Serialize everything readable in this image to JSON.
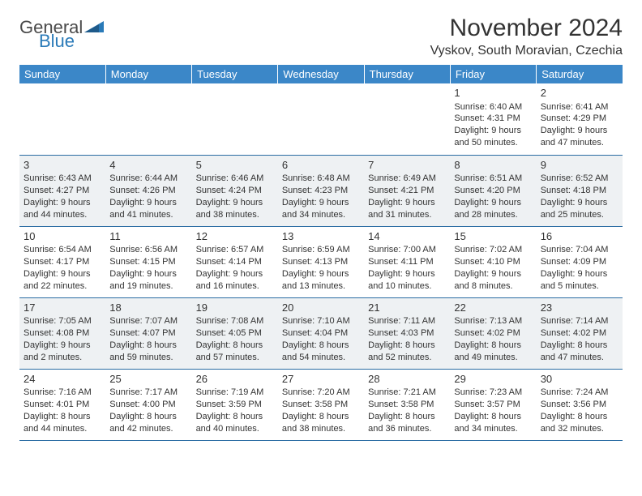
{
  "logo": {
    "text1": "General",
    "text2": "Blue"
  },
  "title": "November 2024",
  "location": "Vyskov, South Moravian, Czechia",
  "colors": {
    "header_bg": "#3b87c8",
    "header_text": "#ffffff",
    "border": "#2a6ca3",
    "shaded_bg": "#eef1f3",
    "text": "#333333",
    "logo_gray": "#4a4a4a",
    "logo_blue": "#2a7ab8"
  },
  "weekdays": [
    "Sunday",
    "Monday",
    "Tuesday",
    "Wednesday",
    "Thursday",
    "Friday",
    "Saturday"
  ],
  "weeks": [
    {
      "shaded": false,
      "days": [
        null,
        null,
        null,
        null,
        null,
        {
          "n": "1",
          "sunrise": "6:40 AM",
          "sunset": "4:31 PM",
          "daylight": "9 hours and 50 minutes."
        },
        {
          "n": "2",
          "sunrise": "6:41 AM",
          "sunset": "4:29 PM",
          "daylight": "9 hours and 47 minutes."
        }
      ]
    },
    {
      "shaded": true,
      "days": [
        {
          "n": "3",
          "sunrise": "6:43 AM",
          "sunset": "4:27 PM",
          "daylight": "9 hours and 44 minutes."
        },
        {
          "n": "4",
          "sunrise": "6:44 AM",
          "sunset": "4:26 PM",
          "daylight": "9 hours and 41 minutes."
        },
        {
          "n": "5",
          "sunrise": "6:46 AM",
          "sunset": "4:24 PM",
          "daylight": "9 hours and 38 minutes."
        },
        {
          "n": "6",
          "sunrise": "6:48 AM",
          "sunset": "4:23 PM",
          "daylight": "9 hours and 34 minutes."
        },
        {
          "n": "7",
          "sunrise": "6:49 AM",
          "sunset": "4:21 PM",
          "daylight": "9 hours and 31 minutes."
        },
        {
          "n": "8",
          "sunrise": "6:51 AM",
          "sunset": "4:20 PM",
          "daylight": "9 hours and 28 minutes."
        },
        {
          "n": "9",
          "sunrise": "6:52 AM",
          "sunset": "4:18 PM",
          "daylight": "9 hours and 25 minutes."
        }
      ]
    },
    {
      "shaded": false,
      "days": [
        {
          "n": "10",
          "sunrise": "6:54 AM",
          "sunset": "4:17 PM",
          "daylight": "9 hours and 22 minutes."
        },
        {
          "n": "11",
          "sunrise": "6:56 AM",
          "sunset": "4:15 PM",
          "daylight": "9 hours and 19 minutes."
        },
        {
          "n": "12",
          "sunrise": "6:57 AM",
          "sunset": "4:14 PM",
          "daylight": "9 hours and 16 minutes."
        },
        {
          "n": "13",
          "sunrise": "6:59 AM",
          "sunset": "4:13 PM",
          "daylight": "9 hours and 13 minutes."
        },
        {
          "n": "14",
          "sunrise": "7:00 AM",
          "sunset": "4:11 PM",
          "daylight": "9 hours and 10 minutes."
        },
        {
          "n": "15",
          "sunrise": "7:02 AM",
          "sunset": "4:10 PM",
          "daylight": "9 hours and 8 minutes."
        },
        {
          "n": "16",
          "sunrise": "7:04 AM",
          "sunset": "4:09 PM",
          "daylight": "9 hours and 5 minutes."
        }
      ]
    },
    {
      "shaded": true,
      "days": [
        {
          "n": "17",
          "sunrise": "7:05 AM",
          "sunset": "4:08 PM",
          "daylight": "9 hours and 2 minutes."
        },
        {
          "n": "18",
          "sunrise": "7:07 AM",
          "sunset": "4:07 PM",
          "daylight": "8 hours and 59 minutes."
        },
        {
          "n": "19",
          "sunrise": "7:08 AM",
          "sunset": "4:05 PM",
          "daylight": "8 hours and 57 minutes."
        },
        {
          "n": "20",
          "sunrise": "7:10 AM",
          "sunset": "4:04 PM",
          "daylight": "8 hours and 54 minutes."
        },
        {
          "n": "21",
          "sunrise": "7:11 AM",
          "sunset": "4:03 PM",
          "daylight": "8 hours and 52 minutes."
        },
        {
          "n": "22",
          "sunrise": "7:13 AM",
          "sunset": "4:02 PM",
          "daylight": "8 hours and 49 minutes."
        },
        {
          "n": "23",
          "sunrise": "7:14 AM",
          "sunset": "4:02 PM",
          "daylight": "8 hours and 47 minutes."
        }
      ]
    },
    {
      "shaded": false,
      "days": [
        {
          "n": "24",
          "sunrise": "7:16 AM",
          "sunset": "4:01 PM",
          "daylight": "8 hours and 44 minutes."
        },
        {
          "n": "25",
          "sunrise": "7:17 AM",
          "sunset": "4:00 PM",
          "daylight": "8 hours and 42 minutes."
        },
        {
          "n": "26",
          "sunrise": "7:19 AM",
          "sunset": "3:59 PM",
          "daylight": "8 hours and 40 minutes."
        },
        {
          "n": "27",
          "sunrise": "7:20 AM",
          "sunset": "3:58 PM",
          "daylight": "8 hours and 38 minutes."
        },
        {
          "n": "28",
          "sunrise": "7:21 AM",
          "sunset": "3:58 PM",
          "daylight": "8 hours and 36 minutes."
        },
        {
          "n": "29",
          "sunrise": "7:23 AM",
          "sunset": "3:57 PM",
          "daylight": "8 hours and 34 minutes."
        },
        {
          "n": "30",
          "sunrise": "7:24 AM",
          "sunset": "3:56 PM",
          "daylight": "8 hours and 32 minutes."
        }
      ]
    }
  ],
  "labels": {
    "sunrise": "Sunrise:",
    "sunset": "Sunset:",
    "daylight": "Daylight:"
  }
}
